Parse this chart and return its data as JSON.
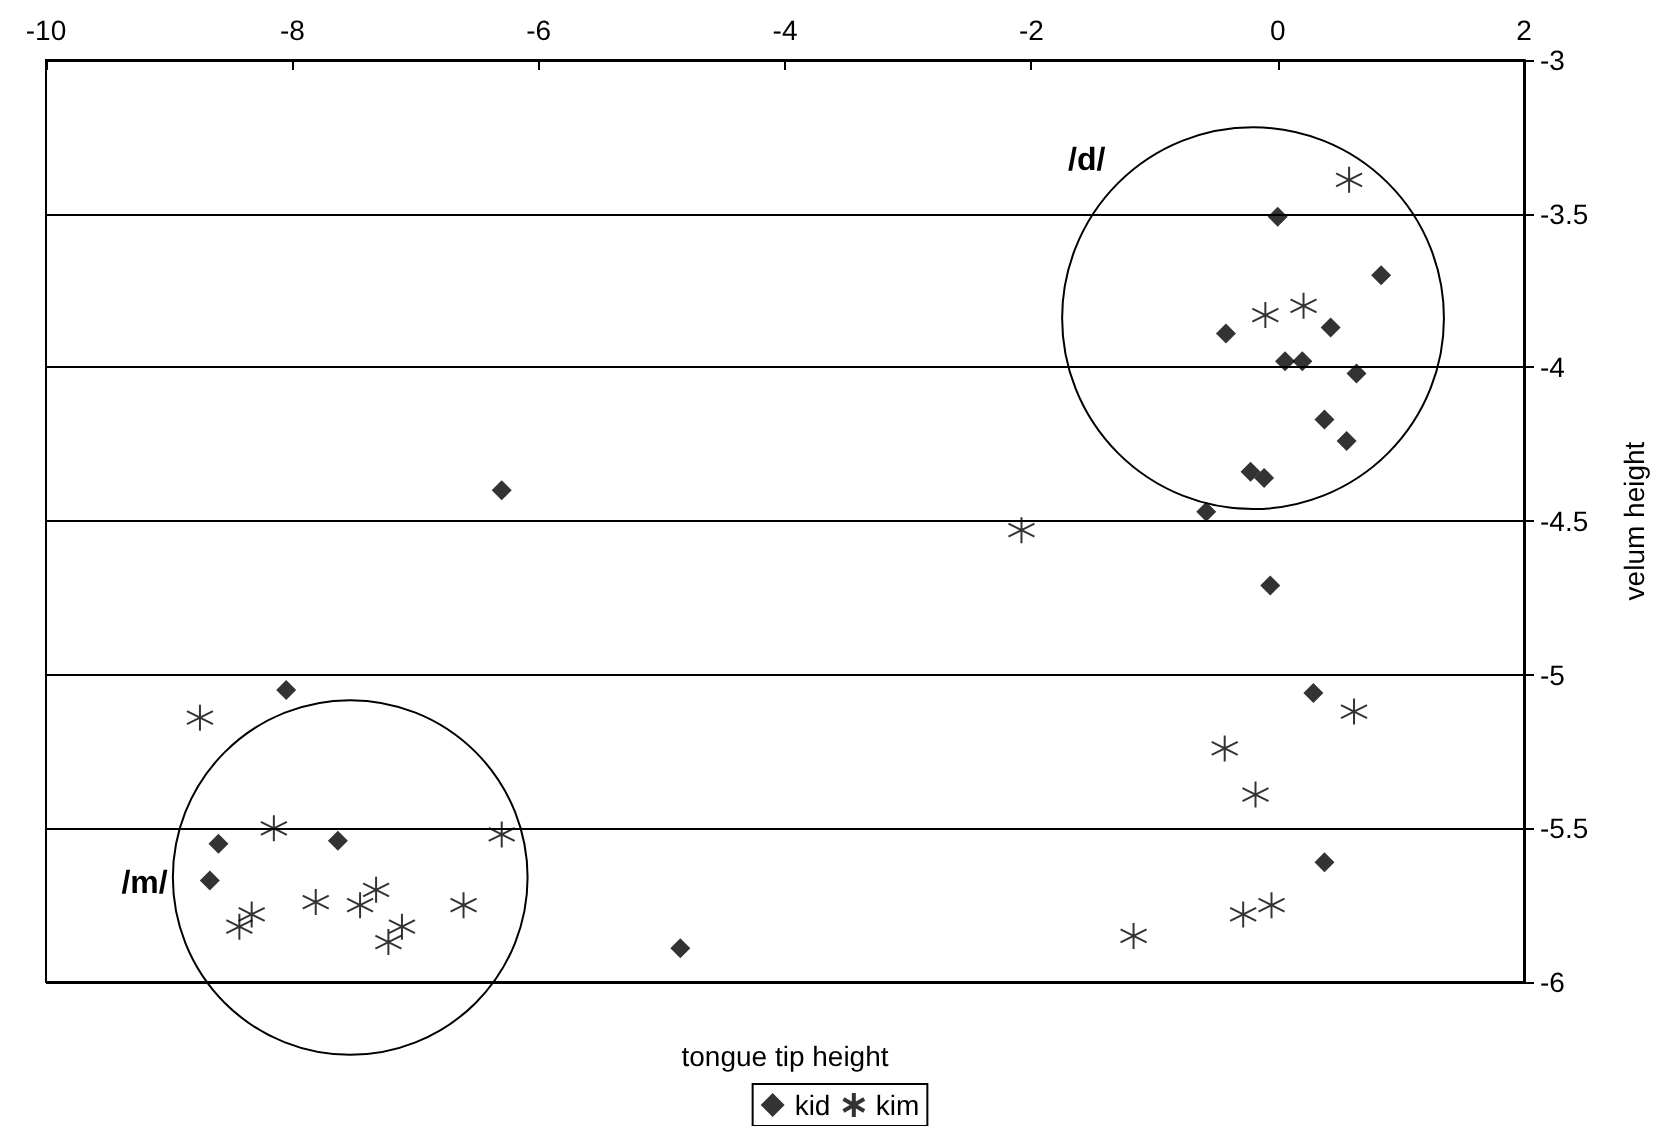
{
  "chart_data": {
    "type": "scatter",
    "xlabel": "tongue tip height",
    "ylabel": "velum height",
    "xlim": [
      -10,
      2
    ],
    "xticks": [
      -10,
      -8,
      -6,
      -4,
      -2,
      0,
      2
    ],
    "ylim": [
      -6,
      -3
    ],
    "yticks": [
      -6,
      -5.5,
      -5,
      -4.5,
      -4,
      -3.5,
      -3
    ],
    "grid": "y",
    "legend": "bottom",
    "annotations": [
      "/d/",
      "/m/"
    ],
    "series": [
      {
        "name": "kid",
        "color": "#000000",
        "marker": "diamond",
        "x": [
          -8.05,
          -8.6,
          -7.63,
          -8.67,
          -4.85,
          -6.3,
          0.0,
          0.84,
          -0.42,
          0.43,
          0.06,
          0.2,
          0.64,
          0.38,
          0.56,
          -0.22,
          -0.11,
          -0.58,
          -0.06,
          0.29,
          0.38
        ],
        "values": [
          -5.05,
          -5.55,
          -5.54,
          -5.67,
          -5.89,
          -4.4,
          -3.51,
          -3.7,
          -3.89,
          -3.87,
          -3.98,
          -3.98,
          -4.02,
          -4.17,
          -4.24,
          -4.34,
          -4.36,
          -4.47,
          -4.71,
          -5.06,
          -5.61
        ]
      },
      {
        "name": "kim",
        "color": "#000000",
        "marker": "cross",
        "x": [
          -8.75,
          -8.15,
          -6.3,
          -7.81,
          -7.45,
          -7.32,
          -6.61,
          -8.33,
          -8.43,
          -7.11,
          -7.22,
          0.58,
          0.21,
          -0.1,
          -2.08,
          0.62,
          -0.43,
          -0.18,
          -0.05,
          -0.28,
          -1.17
        ],
        "values": [
          -5.14,
          -5.5,
          -5.52,
          -5.74,
          -5.75,
          -5.7,
          -5.75,
          -5.78,
          -5.82,
          -5.82,
          -5.87,
          -3.39,
          -3.8,
          -3.83,
          -4.53,
          -5.12,
          -5.24,
          -5.39,
          -5.75,
          -5.78,
          -5.85
        ]
      }
    ]
  }
}
